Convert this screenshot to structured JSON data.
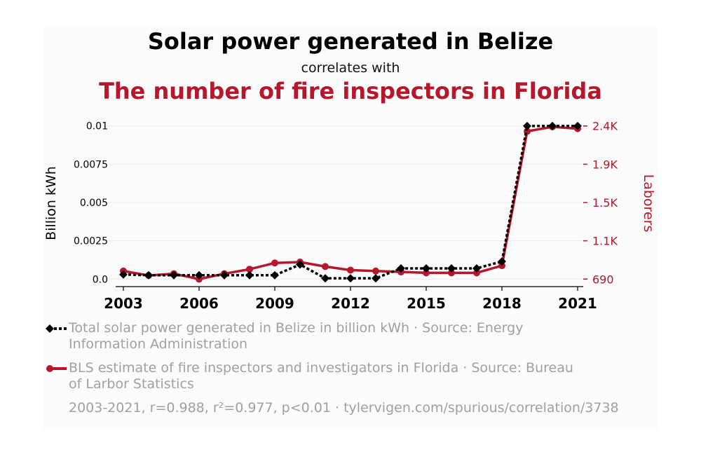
{
  "title": "Solar power generated in Belize",
  "subtitle": "correlates with",
  "title2": "The number of fire inspectors in Florida",
  "colors": {
    "series1": "#000000",
    "series2": "#b5172c",
    "muted": "#a0a0a0"
  },
  "chart_data": {
    "type": "line",
    "x": [
      2003,
      2004,
      2005,
      2006,
      2007,
      2008,
      2009,
      2010,
      2011,
      2012,
      2013,
      2014,
      2015,
      2016,
      2017,
      2018,
      2019,
      2020,
      2021
    ],
    "xticks": [
      "2003",
      "2006",
      "2009",
      "2012",
      "2015",
      "2018",
      "2021"
    ],
    "xtick_values": [
      2003,
      2006,
      2009,
      2012,
      2015,
      2018,
      2021
    ],
    "ylabel": "Billion kWh",
    "y2label": "Laborers",
    "yticks": [
      "0.0",
      "0.0025",
      "0.005",
      "0.0075",
      "0.01"
    ],
    "ytick_values": [
      0,
      0.0025,
      0.005,
      0.0075,
      0.01
    ],
    "y2ticks": [
      "690",
      "1.1K",
      "1.5K",
      "1.9K",
      "2.4K"
    ],
    "y2tick_values": [
      690,
      1117.5,
      1545,
      1972.5,
      2400
    ],
    "ylim": [
      -0.0004,
      0.0104
    ],
    "y2lim": [
      621.6,
      2468.4
    ],
    "series": [
      {
        "name": "Total solar power generated in Belize in billion kWh · Source: Energy Information Administration",
        "axis": "left",
        "style": "dotted",
        "marker": "diamond",
        "values": [
          0.0003,
          0.00025,
          0.00025,
          0.00025,
          0.00025,
          0.00025,
          0.00025,
          0.00095,
          5e-05,
          5e-05,
          5e-05,
          0.0007,
          0.0007,
          0.0007,
          0.0007,
          0.00115,
          0.01,
          0.01,
          0.01
        ]
      },
      {
        "name": "BLS estimate of fire inspectors and investigators in Florida · Source: Bureau of Larbor Statistics",
        "axis": "right",
        "style": "solid",
        "marker": "circle",
        "values": [
          780,
          730,
          750,
          690,
          750,
          800,
          870,
          880,
          830,
          790,
          780,
          770,
          760,
          760,
          760,
          840,
          2340,
          2390,
          2370
        ]
      }
    ]
  },
  "footer": "2003-2021, r=0.988, r²=0.977, p<0.01 · tylervigen.com/spurious/correlation/3738"
}
